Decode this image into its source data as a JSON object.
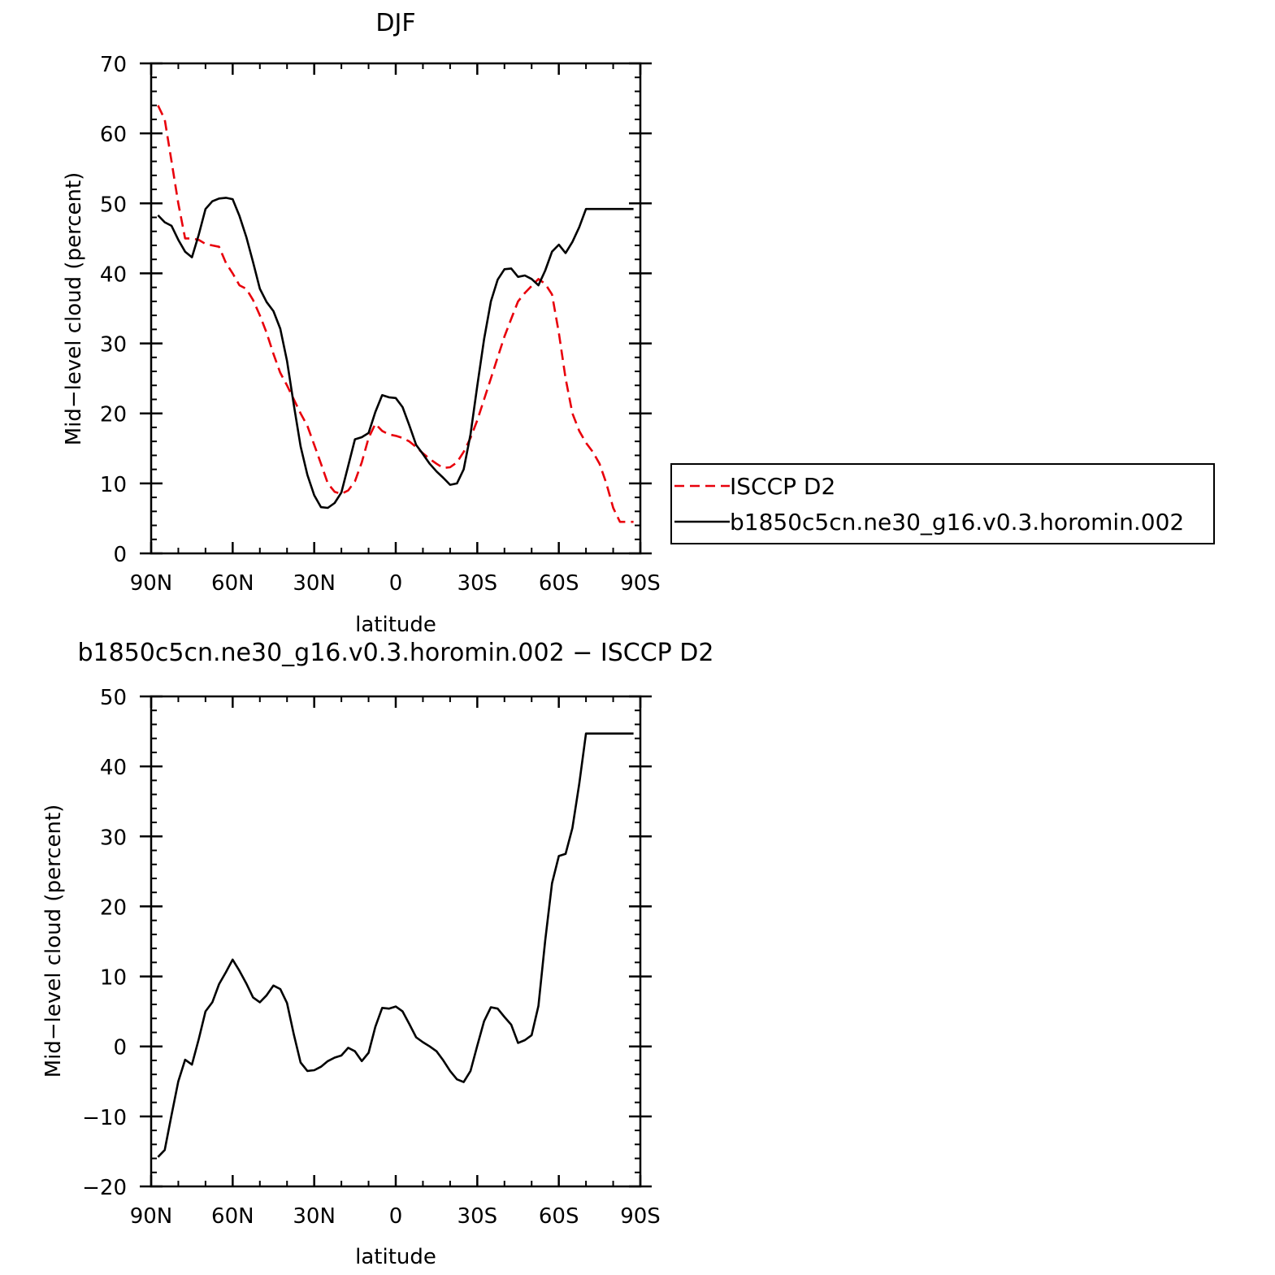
{
  "chart_data": [
    {
      "type": "line",
      "title": "DJF",
      "xlabel": "latitude",
      "ylabel": "Mid−level cloud (percent)",
      "xlim": [
        90,
        -90
      ],
      "ylim": [
        0,
        70
      ],
      "x_ticks": [
        90,
        60,
        30,
        0,
        -30,
        -60,
        -90
      ],
      "x_tick_labels": [
        "90N",
        "60N",
        "30N",
        "0",
        "30S",
        "60S",
        "90S"
      ],
      "y_ticks": [
        0,
        10,
        20,
        30,
        40,
        50,
        60,
        70
      ],
      "y_tick_labels": [
        "0",
        "10",
        "20",
        "30",
        "40",
        "50",
        "60",
        "70"
      ],
      "grid": false,
      "legend_position": "right",
      "series": [
        {
          "name": "ISCCP D2",
          "color": "#e8000b",
          "dash": "dashed",
          "x": [
            87.5,
            85,
            82.5,
            80,
            77.5,
            75,
            72.5,
            70,
            67.5,
            65,
            62.5,
            60,
            57.5,
            55,
            52.5,
            50,
            47.5,
            45,
            42.5,
            40,
            37.5,
            35,
            32.5,
            30,
            27.5,
            25,
            22.5,
            20,
            17.5,
            15,
            12.5,
            10,
            7.5,
            5,
            2.5,
            0,
            -2.5,
            -5,
            -7.5,
            -10,
            -12.5,
            -15,
            -17.5,
            -20,
            -22.5,
            -25,
            -27.5,
            -30,
            -32.5,
            -35,
            -37.5,
            -40,
            -42.5,
            -45,
            -47.5,
            -50,
            -52.5,
            -55,
            -57.5,
            -60,
            -62.5,
            -65,
            -67.5,
            -70,
            -72.5,
            -75,
            -77.5,
            -80,
            -82.5,
            -85,
            -87.5
          ],
          "y": [
            64.0,
            62.0,
            56.0,
            50.0,
            45.0,
            45.0,
            44.8,
            44.2,
            44.0,
            43.8,
            41.5,
            40.0,
            38.3,
            37.8,
            36.2,
            34.0,
            31.5,
            28.5,
            25.8,
            24.0,
            22.0,
            20.0,
            18.2,
            15.5,
            12.8,
            10.0,
            8.8,
            8.5,
            9.0,
            10.3,
            13.0,
            16.5,
            18.5,
            17.5,
            17.0,
            16.8,
            16.5,
            16.0,
            15.2,
            14.3,
            13.5,
            12.8,
            12.2,
            12.3,
            13.0,
            14.5,
            16.5,
            19.0,
            22.0,
            25.0,
            28.0,
            31.0,
            33.5,
            36.0,
            37.2,
            38.2,
            39.2,
            38.5,
            37.0,
            31.5,
            25.0,
            20.0,
            17.5,
            15.8,
            14.5,
            12.8,
            10.0,
            6.5,
            4.5,
            4.5,
            4.5
          ]
        },
        {
          "name": "b1850c5cn.ne30_g16.v0.3.horomin.002",
          "color": "#000000",
          "dash": "solid",
          "x": [
            87.5,
            85,
            82.5,
            80,
            77.5,
            75,
            72.5,
            70,
            67.5,
            65,
            62.5,
            60,
            57.5,
            55,
            52.5,
            50,
            47.5,
            45,
            42.5,
            40,
            37.5,
            35,
            32.5,
            30,
            27.5,
            25,
            22.5,
            20,
            17.5,
            15,
            12.5,
            10,
            7.5,
            5,
            2.5,
            0,
            -2.5,
            -5,
            -7.5,
            -10,
            -12.5,
            -15,
            -17.5,
            -20,
            -22.5,
            -25,
            -27.5,
            -30,
            -32.5,
            -35,
            -37.5,
            -40,
            -42.5,
            -45,
            -47.5,
            -50,
            -52.5,
            -55,
            -57.5,
            -60,
            -62.5,
            -65,
            -67.5,
            -70,
            -72.5,
            -75,
            -77.5,
            -80,
            -82.5,
            -85,
            -87.5
          ],
          "y": [
            48.3,
            47.3,
            46.8,
            44.8,
            43.1,
            42.3,
            45.5,
            49.2,
            50.3,
            50.7,
            50.8,
            50.6,
            48.2,
            45.2,
            41.6,
            37.8,
            35.9,
            34.6,
            32.1,
            27.5,
            21.2,
            15.3,
            11.2,
            8.3,
            6.6,
            6.5,
            7.2,
            8.7,
            12.5,
            16.3,
            16.6,
            17.2,
            20.2,
            22.6,
            22.3,
            22.2,
            20.9,
            18.3,
            15.5,
            14.2,
            12.8,
            11.7,
            10.8,
            9.8,
            10.0,
            12.0,
            17.0,
            23.9,
            30.6,
            36.0,
            39.1,
            40.6,
            40.7,
            39.5,
            39.7,
            39.2,
            38.3,
            40.4,
            43.1,
            44.1,
            42.9,
            44.5,
            46.6,
            49.2,
            49.2,
            49.2,
            49.2,
            49.2,
            49.2,
            49.2,
            49.2
          ]
        }
      ]
    },
    {
      "type": "line",
      "title": "b1850c5cn.ne30_g16.v0.3.horomin.002 − ISCCP D2",
      "xlabel": "latitude",
      "ylabel": "Mid−level cloud (percent)",
      "xlim": [
        90,
        -90
      ],
      "ylim": [
        -20,
        50
      ],
      "x_ticks": [
        90,
        60,
        30,
        0,
        -30,
        -60,
        -90
      ],
      "x_tick_labels": [
        "90N",
        "60N",
        "30N",
        "0",
        "30S",
        "60S",
        "90S"
      ],
      "y_ticks": [
        -20,
        -10,
        0,
        10,
        20,
        30,
        40,
        50
      ],
      "y_tick_labels": [
        "−20",
        "−10",
        "0",
        "10",
        "20",
        "30",
        "40",
        "50"
      ],
      "grid": false,
      "series": [
        {
          "color": "#000000",
          "dash": "solid",
          "x": [
            87.5,
            85,
            82.5,
            80,
            77.5,
            75,
            72.5,
            70,
            67.5,
            65,
            62.5,
            60,
            57.5,
            55,
            52.5,
            50,
            47.5,
            45,
            42.5,
            40,
            37.5,
            35,
            32.5,
            30,
            27.5,
            25,
            22.5,
            20,
            17.5,
            15,
            12.5,
            10,
            7.5,
            5,
            2.5,
            0,
            -2.5,
            -5,
            -7.5,
            -10,
            -12.5,
            -15,
            -17.5,
            -20,
            -22.5,
            -25,
            -27.5,
            -30,
            -32.5,
            -35,
            -37.5,
            -40,
            -42.5,
            -45,
            -47.5,
            -50,
            -52.5,
            -55,
            -57.5,
            -60,
            -62.5,
            -65,
            -67.5,
            -70,
            -72.5,
            -75,
            -77.5,
            -80,
            -82.5,
            -85,
            -87.5
          ],
          "y": [
            -15.8,
            -14.8,
            -9.8,
            -5.0,
            -1.9,
            -2.6,
            1.0,
            5.0,
            6.3,
            8.9,
            10.6,
            12.4,
            10.8,
            9.0,
            7.0,
            6.3,
            7.3,
            8.7,
            8.2,
            6.2,
            1.7,
            -2.3,
            -3.5,
            -3.4,
            -2.9,
            -2.1,
            -1.6,
            -1.3,
            -0.2,
            -0.7,
            -2.1,
            -0.9,
            2.8,
            5.5,
            5.4,
            5.7,
            5.0,
            3.2,
            1.3,
            0.6,
            0.0,
            -0.7,
            -2.0,
            -3.5,
            -4.7,
            -5.1,
            -3.5,
            0.1,
            3.6,
            5.6,
            5.4,
            4.2,
            3.1,
            0.5,
            0.9,
            1.6,
            5.8,
            15.1,
            23.3,
            27.2,
            27.5,
            31.2,
            37.5,
            44.7,
            44.7,
            44.7,
            44.7,
            44.7,
            44.7,
            44.7,
            44.7
          ]
        }
      ]
    }
  ]
}
